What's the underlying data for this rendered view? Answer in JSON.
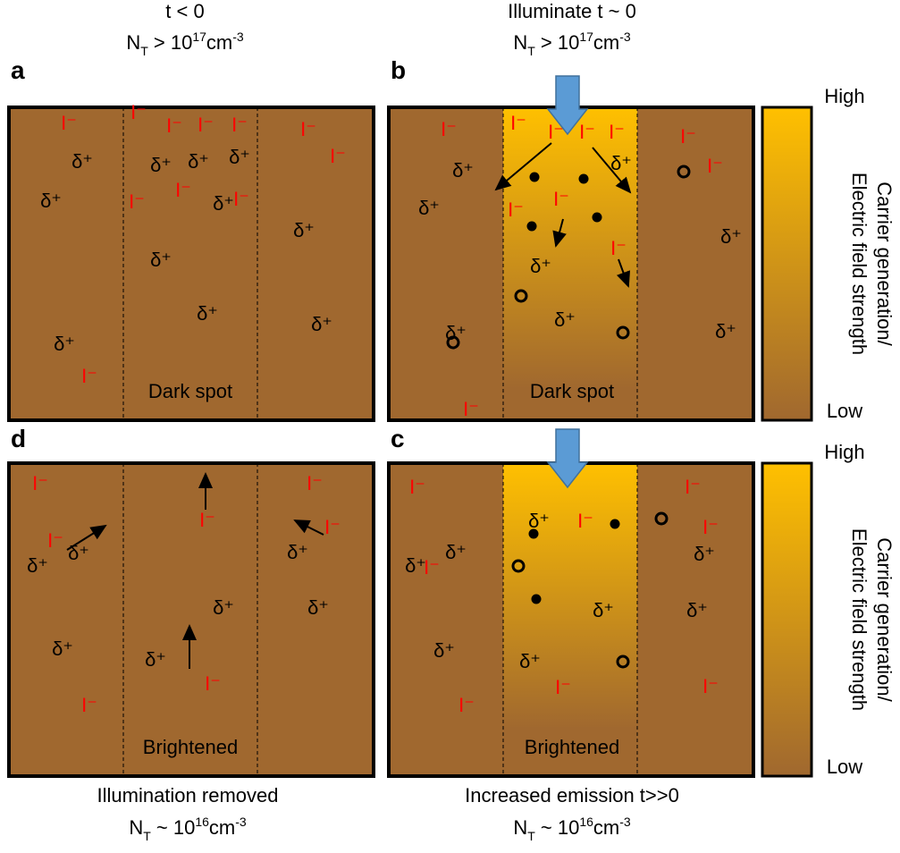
{
  "panels": [
    {
      "letter": "a",
      "caption": "t < 0",
      "density": {
        "main": "N",
        "sub": "T",
        "mid": " > 10",
        "sup": "17",
        "unit": "cm",
        "unit_sup": "-3"
      },
      "ions": [
        "I⁻",
        "I⁻",
        "I⁻",
        "I⁻",
        "I⁻",
        "I⁻",
        "I⁻",
        "I⁻",
        "I⁻",
        "I⁻",
        "I⁻"
      ],
      "deltas": [
        "δ⁺",
        "δ⁺",
        "δ⁺",
        "δ⁺",
        "δ⁺",
        "δ⁺",
        "δ⁺",
        "δ⁺",
        "δ⁺",
        "δ⁺",
        "δ⁺"
      ],
      "region_label": "Dark spot"
    },
    {
      "letter": "b",
      "caption": "Illuminate t ~ 0",
      "density": {
        "main": "N",
        "sub": "T",
        "mid": " > 10",
        "sup": "17",
        "unit": "cm",
        "unit_sup": "-3"
      },
      "ions": [
        "I⁻",
        "I⁻",
        "I⁻",
        "I⁻",
        "I⁻",
        "I⁻",
        "I⁻",
        "I⁻",
        "I⁻",
        "I⁻",
        "I⁻"
      ],
      "deltas": [
        "δ⁺",
        "δ⁺",
        "δ⁺",
        "δ⁺",
        "δ⁺",
        "δ⁺",
        "δ⁺",
        "δ⁺"
      ],
      "region_label": "Dark spot"
    },
    {
      "letter": "d",
      "caption": "Illumination removed",
      "density": {
        "main": "N",
        "sub": "T",
        "mid": " ~ 10",
        "sup": "16",
        "unit": "cm",
        "unit_sup": "-3"
      },
      "ions": [
        "I⁻",
        "I⁻",
        "I⁻",
        "I⁻",
        "I⁻",
        "I⁻",
        "I⁻"
      ],
      "deltas": [
        "δ⁺",
        "δ⁺",
        "δ⁺",
        "δ⁺",
        "δ⁺",
        "δ⁺",
        "δ⁺"
      ],
      "region_label": "Brightened"
    },
    {
      "letter": "c",
      "caption": "Increased emission t>>0",
      "density": {
        "main": "N",
        "sub": "T",
        "mid": " ~ 10",
        "sup": "16",
        "unit": "cm",
        "unit_sup": "-3"
      },
      "ions": [
        "I⁻",
        "I⁻",
        "I⁻",
        "I⁻",
        "I⁻",
        "I⁻",
        "I⁻",
        "I⁻"
      ],
      "deltas": [
        "δ⁺",
        "δ⁺",
        "δ⁺",
        "δ⁺",
        "δ⁺",
        "δ⁺",
        "δ⁺",
        "δ⁺"
      ],
      "region_label": "Brightened"
    }
  ],
  "colorbars": [
    {
      "high": "High",
      "low": "Low",
      "label_lines": [
        "Carrier generation/",
        "Electric field strength"
      ]
    },
    {
      "high": "High",
      "low": "Low",
      "label_lines": [
        "Carrier generation/",
        "Electric field strength"
      ]
    }
  ]
}
